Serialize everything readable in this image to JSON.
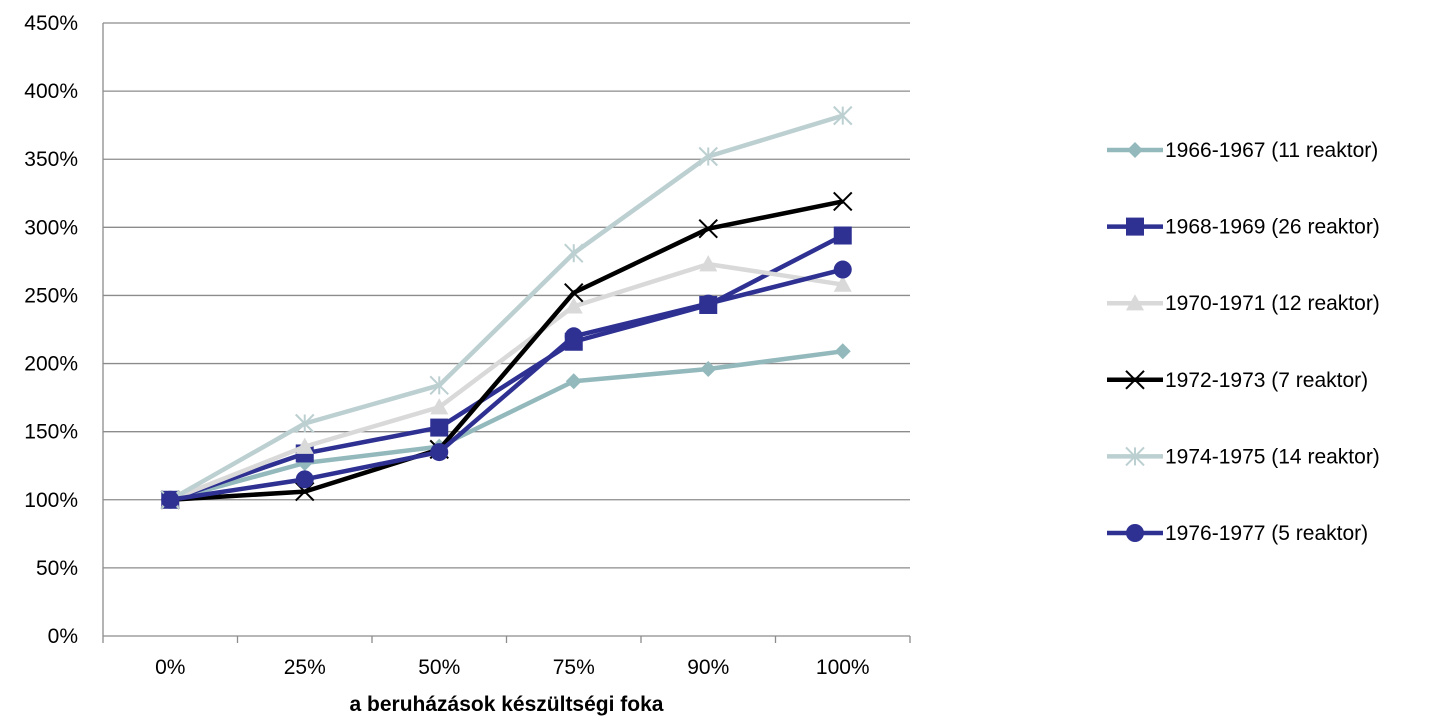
{
  "chart_data": {
    "type": "line",
    "title": "",
    "xlabel": "a beruházások készültségi foka",
    "ylabel": "",
    "categories": [
      "0%",
      "25%",
      "50%",
      "75%",
      "90%",
      "100%"
    ],
    "y_ticks": [
      "0%",
      "50%",
      "100%",
      "150%",
      "200%",
      "250%",
      "300%",
      "350%",
      "400%",
      "450%"
    ],
    "ylim": [
      0,
      450
    ],
    "grid": "horizontal",
    "legend_position": "right",
    "series": [
      {
        "name": "1966-1967 (11 reaktor)",
        "color": "#93b9bd",
        "marker": "diamond",
        "values": [
          100,
          127,
          139,
          187,
          196,
          209
        ]
      },
      {
        "name": "1968-1969 (26 reaktor)",
        "color": "#2e3192",
        "marker": "square",
        "values": [
          100,
          134,
          153,
          216,
          243,
          294
        ]
      },
      {
        "name": "1970-1971 (12 reaktor)",
        "color": "#d9d9d9",
        "marker": "triangle",
        "values": [
          100,
          139,
          168,
          242,
          273,
          258
        ]
      },
      {
        "name": "1972-1973 (7 reaktor)",
        "color": "#000000",
        "marker": "x",
        "values": [
          100,
          106,
          137,
          252,
          299,
          319
        ]
      },
      {
        "name": "1974-1975 (14 reaktor)",
        "color": "#bccfd1",
        "marker": "star",
        "values": [
          100,
          156,
          184,
          281,
          352,
          382
        ]
      },
      {
        "name": "1976-1977 (5 reaktor)",
        "color": "#2e3192",
        "marker": "circle",
        "values": [
          100,
          115,
          135,
          220,
          244,
          269
        ]
      }
    ]
  }
}
